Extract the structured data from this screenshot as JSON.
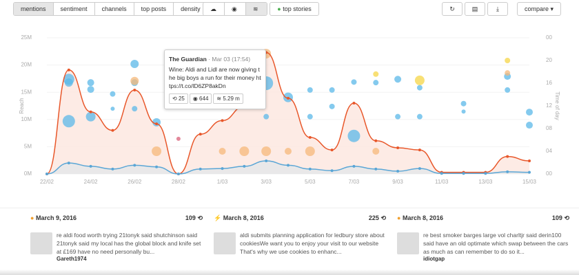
{
  "toolbar": {
    "tabs": [
      "mentions",
      "sentiment",
      "channels",
      "top posts",
      "density"
    ],
    "toggle": "top stories",
    "compare": "compare"
  },
  "chart_data": {
    "type": "line",
    "y_label": "Reach",
    "y2_label": "Time of day",
    "categories": [
      "22/02",
      null,
      "24/02",
      null,
      "26/02",
      null,
      "28/02",
      null,
      "1/03",
      null,
      "3/03",
      null,
      "5/03",
      null,
      "7/03",
      null,
      "9/03",
      null,
      "11/03",
      null,
      "13/03",
      null,
      "15/03"
    ],
    "ylim": [
      0,
      25
    ],
    "yticks": [
      {
        "value": 0,
        "label": "0M"
      },
      {
        "value": 5,
        "label": "5M"
      },
      {
        "value": 10,
        "label": "10M"
      },
      {
        "value": 15,
        "label": "15M"
      },
      {
        "value": 20,
        "label": "20M"
      },
      {
        "value": 25,
        "label": "25M"
      }
    ],
    "y2lim": [
      0,
      24
    ],
    "y2ticks": [
      {
        "value": 0,
        "label": "00"
      },
      {
        "value": 4,
        "label": "04"
      },
      {
        "value": 8,
        "label": "08"
      },
      12,
      16,
      20,
      {
        "value": 24,
        "label": "00"
      }
    ],
    "grid": true,
    "series": [
      {
        "color": "#e8572a",
        "area": "#fde6df",
        "values": [
          0,
          19.1,
          11.4,
          8.0,
          15.4,
          9.2,
          0,
          7.3,
          9.8,
          12.4,
          22.3,
          13.9,
          6.7,
          4.4,
          13.0,
          6.1,
          4.8,
          4.4,
          0.3,
          0.3,
          0.3,
          3.2,
          2.4
        ]
      },
      {
        "color": "#5aa6d6",
        "area": "#e4e7ea",
        "values": [
          0,
          2.0,
          1.4,
          0.9,
          1.6,
          1.3,
          0,
          0.9,
          1.0,
          1.4,
          2.4,
          1.6,
          0.9,
          0.6,
          1.4,
          0.9,
          0.5,
          1.0,
          0.1,
          0.1,
          0.1,
          0.4,
          0.3
        ]
      }
    ],
    "bubbles": [
      {
        "color": "#5bb8e8",
        "values": [
          null,
          16.7,
          16.1,
          14.1,
          19.4,
          9.1,
          null,
          null,
          null,
          null,
          16.0,
          13.5,
          14.8,
          14.8,
          16.2,
          16.1,
          16.7,
          15.2,
          null,
          12.4,
          null,
          17.2,
          10.9
        ],
        "sizes": [
          null,
          8,
          5,
          4,
          6,
          6,
          null,
          null,
          null,
          null,
          10,
          7,
          4,
          4,
          4,
          4,
          5,
          4,
          null,
          4,
          null,
          5,
          5
        ]
      },
      {
        "color": "#5bb8e8",
        "values": [
          null,
          16.1,
          14.9,
          11.5,
          16.1,
          null,
          null,
          null,
          null,
          null,
          10.1,
          null,
          10.1,
          11.9,
          6.7,
          null,
          10.1,
          10.1,
          null,
          11.0,
          null,
          14.8,
          8.6
        ],
        "sizes": [
          null,
          6,
          5,
          3,
          5,
          null,
          null,
          null,
          null,
          null,
          4,
          null,
          4,
          4,
          9,
          null,
          4,
          4,
          null,
          3,
          null,
          4,
          5
        ]
      },
      {
        "color": "#5bb8e8",
        "values": [
          null,
          9.3,
          10.1,
          null,
          11.5,
          null,
          null,
          null,
          null,
          null,
          null,
          null,
          null,
          null,
          null,
          null,
          null,
          null,
          null,
          null,
          null,
          null,
          null
        ],
        "sizes": [
          null,
          9,
          7,
          null,
          4,
          null,
          null,
          null,
          null,
          null,
          null,
          null,
          null,
          null,
          null,
          null,
          null,
          null,
          null,
          null,
          null,
          null,
          null
        ]
      },
      {
        "color": "#f5b87a",
        "values": [
          null,
          null,
          null,
          null,
          16.4,
          4.0,
          null,
          null,
          4.0,
          4.0,
          21.2,
          4.0,
          4.0,
          null,
          null,
          4.0,
          null,
          null,
          null,
          null,
          null,
          17.8,
          null
        ],
        "sizes": [
          null,
          null,
          null,
          null,
          6,
          7,
          null,
          null,
          5,
          7,
          7,
          5,
          7,
          null,
          null,
          5,
          null,
          null,
          null,
          null,
          null,
          4,
          null
        ]
      },
      {
        "color": "#f5b87a",
        "values": [
          null,
          null,
          null,
          null,
          null,
          null,
          null,
          null,
          null,
          null,
          4.0,
          null,
          null,
          null,
          null,
          null,
          null,
          null,
          null,
          null,
          null,
          null,
          null
        ],
        "sizes": [
          null,
          null,
          null,
          null,
          null,
          null,
          null,
          null,
          null,
          null,
          7,
          null,
          null,
          null,
          null,
          null,
          null,
          null,
          null,
          null,
          null,
          null,
          null
        ]
      },
      {
        "color": "#f5d547",
        "values": [
          null,
          null,
          null,
          null,
          null,
          null,
          null,
          null,
          null,
          null,
          null,
          null,
          null,
          null,
          null,
          17.6,
          null,
          16.5,
          null,
          null,
          null,
          20.0,
          null
        ],
        "sizes": [
          null,
          null,
          null,
          null,
          null,
          null,
          null,
          null,
          null,
          null,
          null,
          null,
          null,
          null,
          null,
          4,
          null,
          7,
          null,
          null,
          null,
          4,
          null
        ]
      },
      {
        "color": "#d9607a",
        "values": [
          null,
          null,
          null,
          null,
          null,
          null,
          6.2,
          null,
          null,
          null,
          null,
          null,
          null,
          null,
          null,
          null,
          null,
          null,
          null,
          null,
          null,
          null,
          null
        ],
        "sizes": [
          null,
          null,
          null,
          null,
          null,
          null,
          3,
          null,
          null,
          null,
          null,
          null,
          null,
          null,
          null,
          null,
          null,
          null,
          null,
          null,
          null,
          null,
          null
        ]
      }
    ]
  },
  "tooltip": {
    "source": "The Guardian",
    "time": "· Mar 03 (17:54)",
    "text": "Wine: Aldi and Lidl are now giving the big boys a run for their money https://t.co/lD6ZP8akDn",
    "retweets": "25",
    "views": "644",
    "reach": "5.29 m"
  },
  "cards": [
    {
      "date": "March 9, 2016",
      "count": "109",
      "text": "re aldi food worth trying 21tonyk said shutchinson said 21tonyk said my local has the global block and knife set at £169 have no need personally bu...",
      "author": "Gareth1974"
    },
    {
      "date": "March 8, 2016",
      "count": "225",
      "text": "aldi submits planning application for ledbury store about cookiesWe want you to enjoy your visit to our website That's why we use cookies to enhanc..."
    },
    {
      "date": "March 8, 2016",
      "count": "109",
      "text": "re best smoker barges large vol charltjr said derin100 said have an old optimate which swap between the cars as much as can remember to do so it...",
      "author": "idiotgap"
    }
  ]
}
